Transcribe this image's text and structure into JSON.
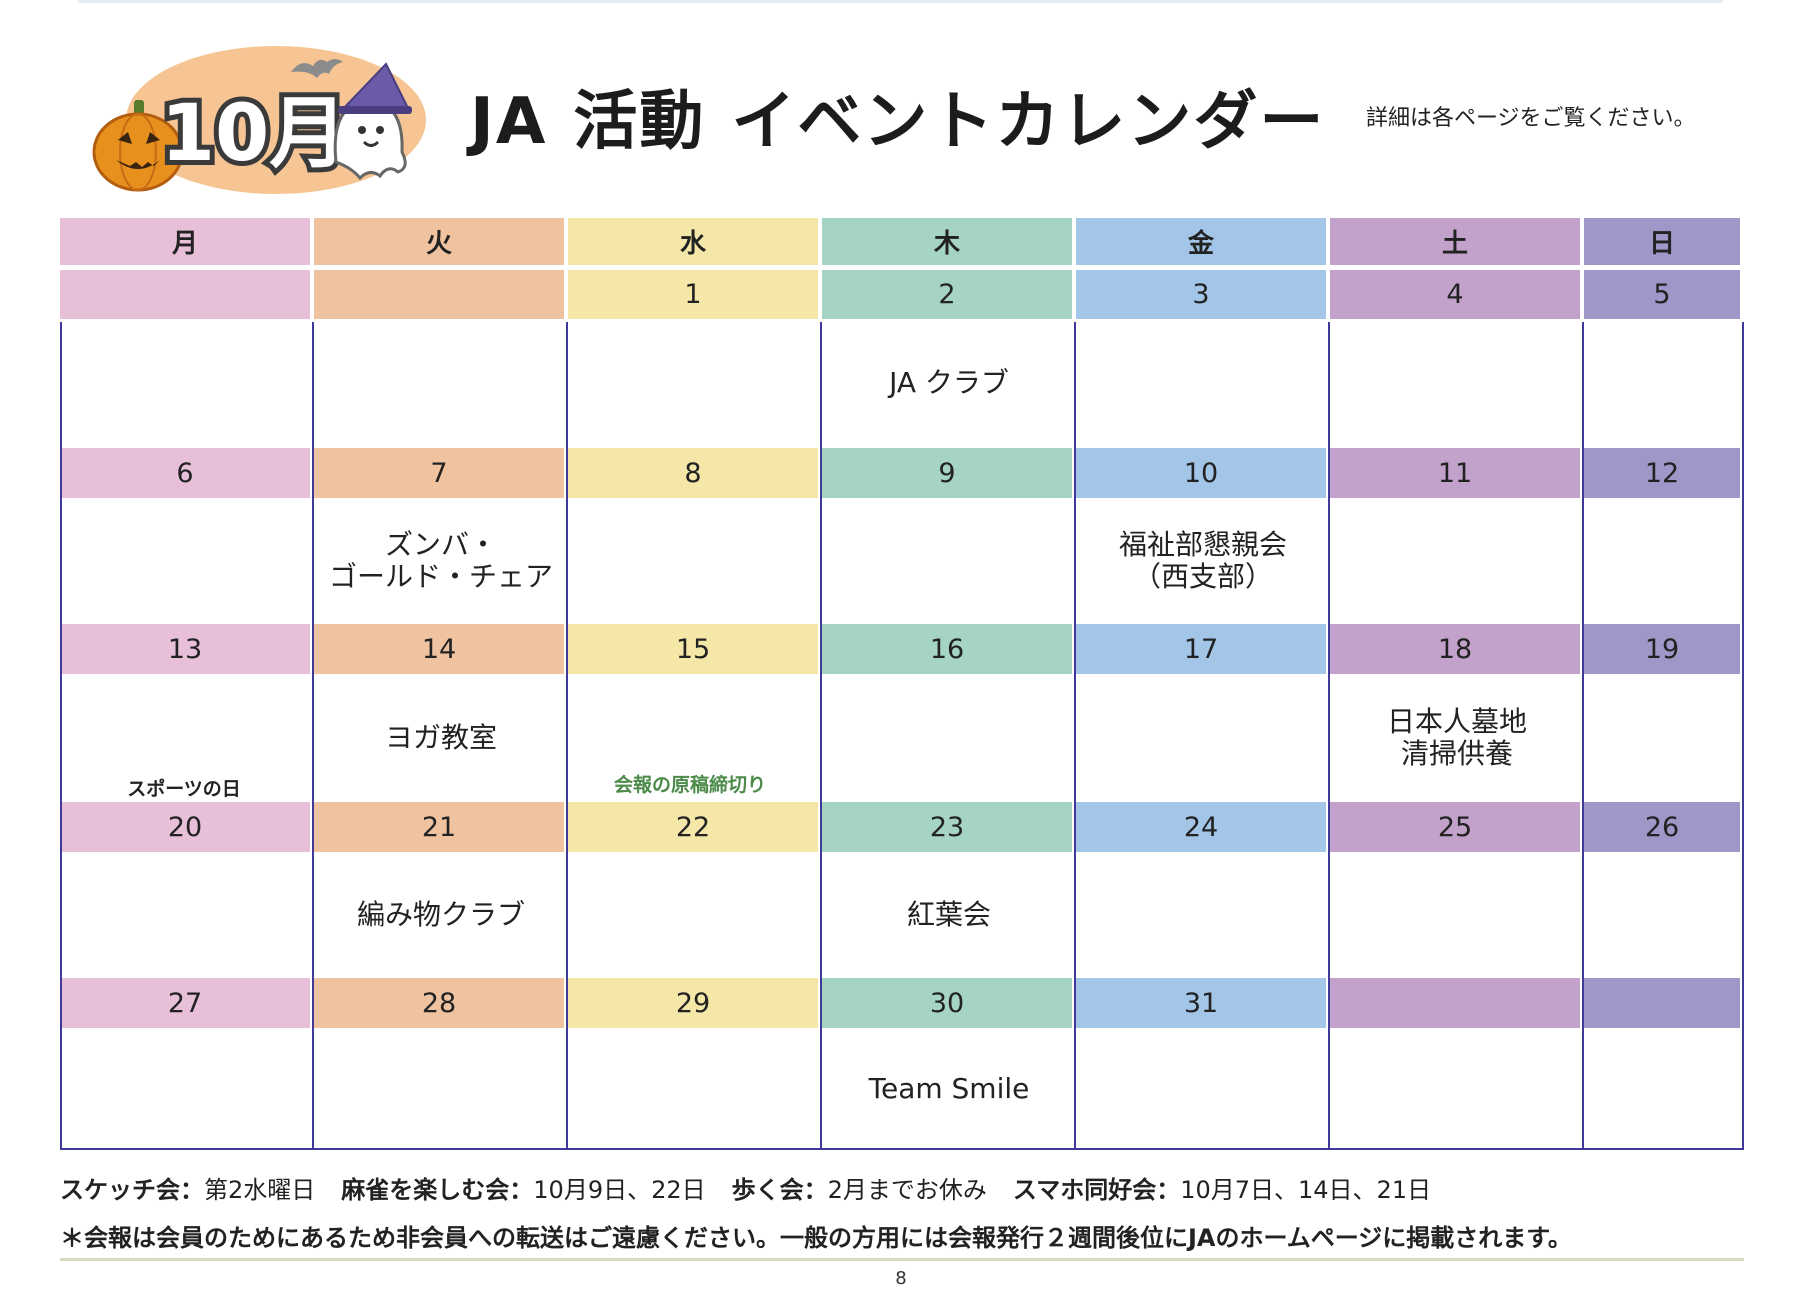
{
  "header": {
    "month_badge": "10月",
    "title_ja": "JA",
    "title_main": "活動",
    "title_sub": "イベントカレンダー",
    "note": "詳細は各ページをご覧ください。"
  },
  "colors": [
    "#e8bfd9",
    "#efc3a0",
    "#f5e7a8",
    "#a6d4c3",
    "#a3c6e8",
    "#c2a2ca",
    "#9d98c8"
  ],
  "weekdays": [
    "月",
    "火",
    "水",
    "木",
    "金",
    "土",
    "日"
  ],
  "weeks": [
    {
      "days": [
        "",
        "",
        "1",
        "2",
        "3",
        "4",
        "5"
      ],
      "events": [
        "",
        "",
        "",
        "JA クラブ",
        "",
        "",
        ""
      ]
    },
    {
      "days": [
        "6",
        "7",
        "8",
        "9",
        "10",
        "11",
        "12"
      ],
      "events": [
        "",
        "ズンバ・\nゴールド・チェア",
        "",
        "",
        "福祉部懇親会\n（西支部）",
        "",
        ""
      ]
    },
    {
      "days": [
        "13",
        "14",
        "15",
        "16",
        "17",
        "18",
        "19"
      ],
      "events": [
        "",
        "ヨガ教室",
        "",
        "",
        "",
        "日本人墓地\n清掃供養",
        ""
      ]
    },
    {
      "days": [
        "20",
        "21",
        "22",
        "23",
        "24",
        "25",
        "26"
      ],
      "events": [
        "",
        "編み物クラブ",
        "",
        "紅葉会",
        "",
        "",
        ""
      ]
    },
    {
      "days": [
        "27",
        "28",
        "29",
        "30",
        "31",
        "",
        ""
      ],
      "events": [
        "",
        "",
        "",
        "Team Smile",
        "",
        "",
        ""
      ]
    }
  ],
  "sub_labels": {
    "holiday": "スポーツの日",
    "deadline": "会報の原稿締切り"
  },
  "footer": {
    "line1": [
      {
        "label": "スケッチ会：",
        "value": "第2水曜日"
      },
      {
        "label": "麻雀を楽しむ会：",
        "value": "10月9日、22日"
      },
      {
        "label": "歩く会：",
        "value": "2月までお休み"
      },
      {
        "label": "スマホ同好会：",
        "value": "10月7日、14日、21日"
      }
    ],
    "line2": "＊会報は会員のためにあるため非会員への転送はご遠慮ください。一般の方用には会報発行２週間後位にJAのホームページに掲載されます。",
    "page_number": "8"
  }
}
